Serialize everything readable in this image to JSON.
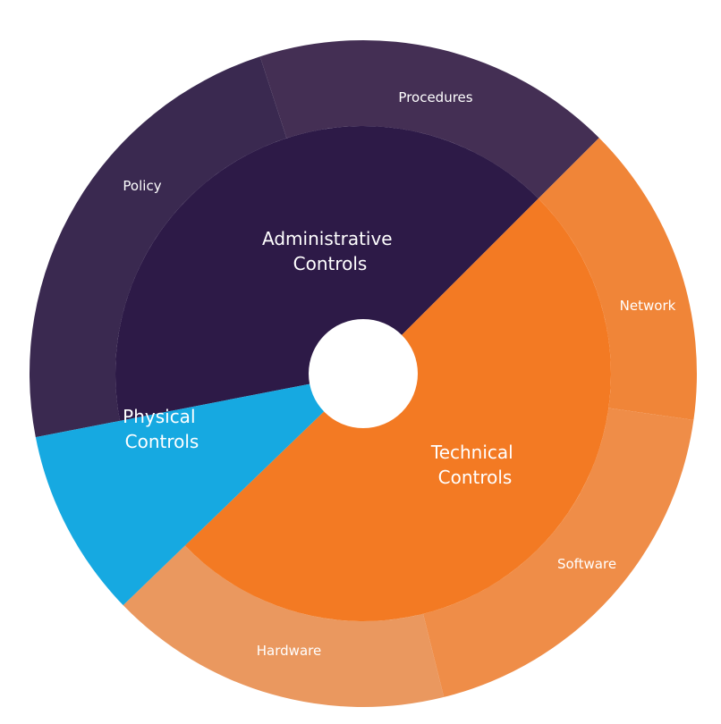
{
  "chart_data": {
    "type": "sunburst",
    "inner_ring": [
      {
        "id": "administrative",
        "label_lines": [
          "Administrative",
          "Controls"
        ],
        "color": "#2d1a47"
      },
      {
        "id": "technical",
        "label_lines": [
          "Technical",
          "Controls"
        ],
        "color": "#f37a23"
      },
      {
        "id": "physical",
        "label_lines": [
          "Physical",
          "Controls"
        ],
        "color": "#16a9e1"
      }
    ],
    "outer_ring": [
      {
        "label": "Procedures",
        "parent": "administrative",
        "color": "#442f54"
      },
      {
        "label": "Network",
        "parent": "technical",
        "color": "#f08538"
      },
      {
        "label": "Software",
        "parent": "technical",
        "color": "#ef8d48"
      },
      {
        "label": "Hardware",
        "parent": "technical",
        "color": "#ea985f"
      },
      {
        "label": "Policy",
        "parent": "administrative",
        "color": "#3a2950"
      }
    ]
  }
}
